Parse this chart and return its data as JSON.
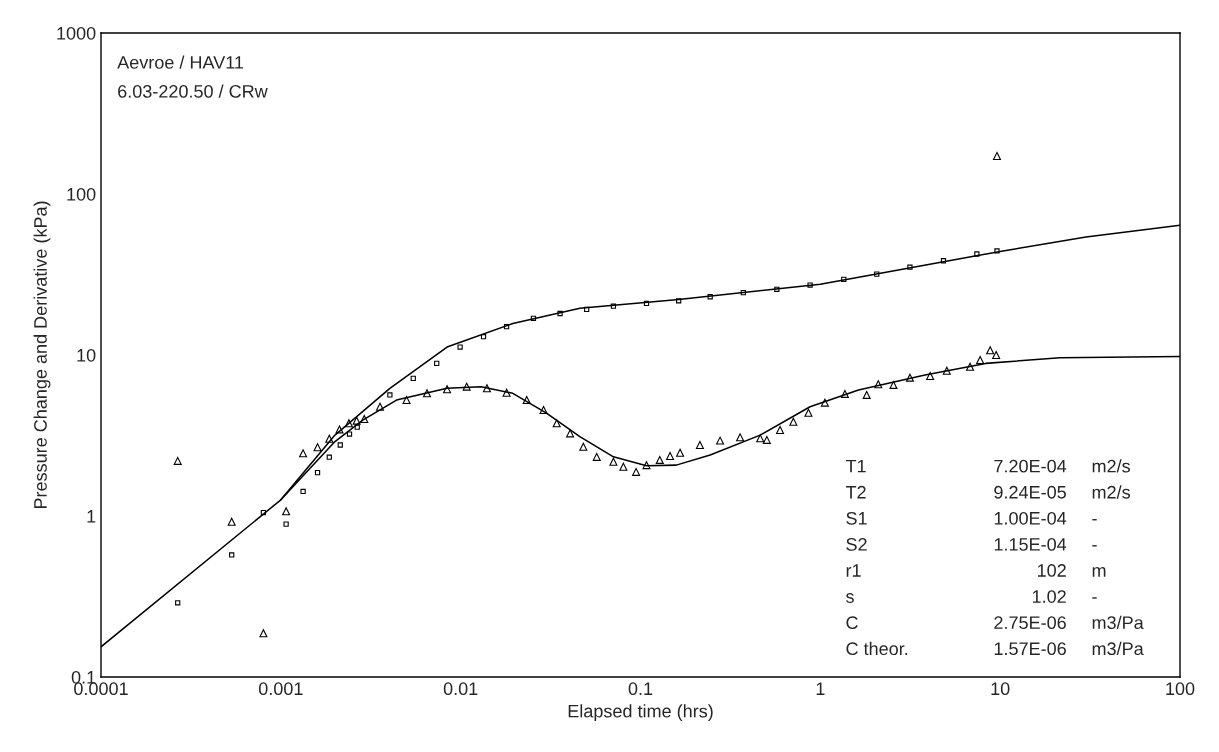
{
  "chart_data": {
    "type": "scatter",
    "xlabel": "Elapsed time (hrs)",
    "ylabel": "Pressure Change and Derivative (kPa)",
    "log": "xy",
    "grid": false,
    "xlim": [
      0.0001,
      100
    ],
    "ylim": [
      0.1,
      1000
    ],
    "xticks": [
      0.0001,
      0.001,
      0.01,
      0.1,
      1,
      10,
      100
    ],
    "yticks": [
      0.1,
      1,
      10,
      100,
      1000
    ],
    "series": [
      {
        "marker": "square",
        "color": "#000000",
        "x": [
          0.000267,
          0.000533,
          0.0008,
          0.00107,
          0.00133,
          0.0016,
          0.00186,
          0.00214,
          0.00241,
          0.00266,
          0.00404,
          0.00545,
          0.00736,
          0.00993,
          0.0134,
          0.018,
          0.0254,
          0.0357,
          0.0502,
          0.0707,
          0.108,
          0.163,
          0.244,
          0.373,
          0.573,
          0.877,
          1.35,
          2.06,
          3.15,
          4.84,
          7.42,
          9.6
        ],
        "values": [
          0.289,
          0.573,
          1.05,
          0.89,
          1.42,
          1.86,
          2.32,
          2.76,
          3.23,
          3.56,
          5.65,
          7.16,
          8.87,
          11.2,
          13.0,
          15.0,
          16.9,
          18.1,
          19.2,
          20.1,
          20.9,
          21.7,
          23.0,
          24.4,
          25.6,
          27.2,
          29.5,
          31.8,
          35.1,
          38.5,
          42.4,
          44.3
        ]
      },
      {
        "marker": "triangle",
        "color": "#000000",
        "x": [
          0.000267,
          0.000533,
          0.0008,
          0.00107,
          0.00133,
          0.0016,
          0.00186,
          0.00212,
          0.00239,
          0.00264,
          0.00291,
          0.00356,
          0.005,
          0.0065,
          0.0084,
          0.0108,
          0.014,
          0.018,
          0.0233,
          0.0289,
          0.0342,
          0.0406,
          0.0481,
          0.0571,
          0.0707,
          0.0803,
          0.0945,
          0.108,
          0.128,
          0.146,
          0.166,
          0.214,
          0.277,
          0.358,
          0.463,
          0.504,
          0.597,
          0.708,
          0.859,
          1.06,
          1.37,
          1.81,
          2.1,
          2.55,
          3.15,
          4.08,
          5.05,
          6.8,
          7.74,
          8.8,
          9.5,
          9.6
        ],
        "values": [
          2.2,
          0.92,
          0.187,
          1.07,
          2.45,
          2.67,
          3.02,
          3.45,
          3.77,
          3.91,
          4.0,
          4.77,
          5.25,
          5.78,
          6.12,
          6.36,
          6.21,
          5.83,
          5.25,
          4.55,
          3.77,
          3.26,
          2.69,
          2.33,
          2.17,
          2.02,
          1.88,
          2.07,
          2.23,
          2.36,
          2.47,
          2.76,
          2.94,
          3.08,
          3.04,
          2.97,
          3.42,
          3.85,
          4.38,
          5.06,
          5.73,
          5.65,
          6.58,
          6.52,
          7.23,
          7.41,
          7.98,
          8.45,
          9.31,
          10.7,
          10.0,
          172
        ]
      },
      {
        "type": "line",
        "color": "#000000",
        "x": [
          0.0001,
          0.001,
          0.002,
          0.00404,
          0.0084,
          0.0195,
          0.046,
          0.163,
          1,
          10,
          30,
          100
        ],
        "values": [
          0.154,
          1.26,
          3.18,
          6.21,
          11.2,
          15.7,
          19.5,
          22.1,
          27.5,
          44,
          54,
          64
        ]
      },
      {
        "type": "line",
        "color": "#000000",
        "x": [
          0.001,
          0.002,
          0.00287,
          0.0044,
          0.0084,
          0.013,
          0.0195,
          0.03,
          0.046,
          0.0707,
          0.108,
          0.158,
          0.244,
          0.463,
          0.877,
          1.63,
          3.82,
          8.3,
          21.5,
          100
        ],
        "values": [
          1.26,
          2.9,
          3.95,
          5.25,
          6.21,
          6.36,
          5.78,
          4.35,
          3.11,
          2.33,
          2.05,
          2.07,
          2.39,
          3.18,
          4.77,
          6.07,
          7.51,
          8.87,
          9.62,
          9.8
        ]
      }
    ],
    "annotations": [
      "Aevroe / HAV11",
      "6.03-220.50 / CRw",
      "T1",
      "7.20E-04",
      "m2/s",
      "T2",
      "9.24E-05",
      "m2/s",
      "S1",
      "1.00E-04",
      "-",
      "S2",
      "1.15E-04",
      "-",
      "r1",
      "102",
      "m",
      "s",
      "1.02",
      "-",
      "C",
      "2.75E-06",
      "m3/Pa",
      "C theor.",
      "1.57E-06",
      "m3/Pa"
    ]
  }
}
